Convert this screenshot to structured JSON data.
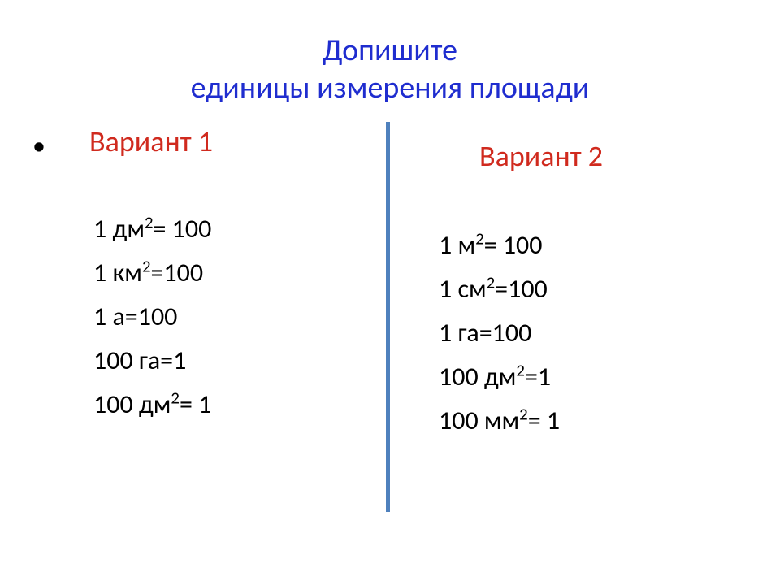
{
  "title_color": "#1f2dcf",
  "variant_color": "#d02a1e",
  "text_color": "#000000",
  "divider_color": "#4f81bd",
  "background_color": "#ffffff",
  "fontsize_title": 38,
  "fontsize_variant": 36,
  "fontsize_body": 32,
  "title_line1": "Допишите",
  "title_line2": "единицы измерения площади",
  "variant1": {
    "header": "Вариант 1",
    "rows": [
      {
        "pre": "1 дм",
        "sup": "2",
        "post": "= 100"
      },
      {
        "pre": "1 км",
        "sup": "2",
        "post": "=100"
      },
      {
        "pre": "1 а=100",
        "sup": "",
        "post": ""
      },
      {
        "pre": "100 га=1",
        "sup": "",
        "post": ""
      },
      {
        "pre": "100 дм",
        "sup": "2",
        "post": "= 1"
      }
    ]
  },
  "variant2": {
    "header": "Вариант 2",
    "rows": [
      {
        "pre": "1 м",
        "sup": "2",
        "post": "= 100"
      },
      {
        "pre": "1 см",
        "sup": "2",
        "post": "=100"
      },
      {
        "pre": "1 га=100",
        "sup": "",
        "post": ""
      },
      {
        "pre": "100 дм",
        "sup": "2",
        "post": "=1"
      },
      {
        "pre": "100 мм",
        "sup": "2",
        "post": "= 1"
      }
    ]
  }
}
